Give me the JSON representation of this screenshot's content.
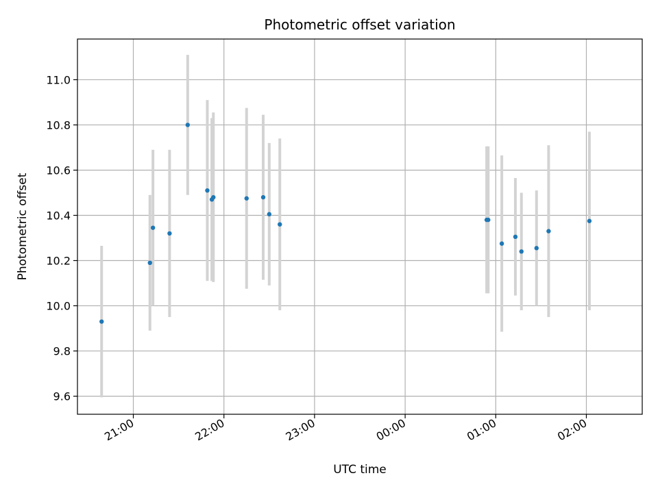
{
  "chart_data": {
    "type": "scatter",
    "title": "Photometric offset variation",
    "xlabel": "UTC time",
    "ylabel": "Photometric offset",
    "x_unit": "UTC time (hh:mm), night spanning midnight",
    "xlim": [
      "20:23",
      "02:37"
    ],
    "ylim": [
      9.52,
      11.18
    ],
    "x_ticks": [
      "21:00",
      "22:00",
      "23:00",
      "00:00",
      "01:00",
      "02:00"
    ],
    "y_ticks": [
      "9.6",
      "9.8",
      "10.0",
      "10.2",
      "10.4",
      "10.6",
      "10.8",
      "11.0"
    ],
    "grid": true,
    "colors": {
      "point": "#1f77b4",
      "errorbar": "#d3d3d3",
      "grid": "#b0b0b0"
    },
    "series": [
      {
        "points": [
          {
            "x": "20:39",
            "y": 9.93,
            "err": 0.335
          },
          {
            "x": "21:11",
            "y": 10.19,
            "err": 0.3
          },
          {
            "x": "21:13",
            "y": 10.345,
            "err": 0.345
          },
          {
            "x": "21:24",
            "y": 10.32,
            "err": 0.37
          },
          {
            "x": "21:36",
            "y": 10.8,
            "err": 0.31
          },
          {
            "x": "21:49",
            "y": 10.51,
            "err": 0.4
          },
          {
            "x": "21:52",
            "y": 10.47,
            "err": 0.36
          },
          {
            "x": "21:53",
            "y": 10.48,
            "err": 0.375
          },
          {
            "x": "22:15",
            "y": 10.475,
            "err": 0.4
          },
          {
            "x": "22:26",
            "y": 10.48,
            "err": 0.365
          },
          {
            "x": "22:30",
            "y": 10.405,
            "err": 0.315
          },
          {
            "x": "22:37",
            "y": 10.36,
            "err": 0.38
          },
          {
            "x": "00:54",
            "y": 10.38,
            "err": 0.325
          },
          {
            "x": "00:55",
            "y": 10.38,
            "err": 0.325
          },
          {
            "x": "01:04",
            "y": 10.275,
            "err": 0.39
          },
          {
            "x": "01:13",
            "y": 10.305,
            "err": 0.26
          },
          {
            "x": "01:17",
            "y": 10.24,
            "err": 0.26
          },
          {
            "x": "01:27",
            "y": 10.255,
            "err": 0.255
          },
          {
            "x": "01:35",
            "y": 10.33,
            "err": 0.38
          },
          {
            "x": "02:02",
            "y": 10.375,
            "err": 0.395
          }
        ]
      }
    ]
  }
}
